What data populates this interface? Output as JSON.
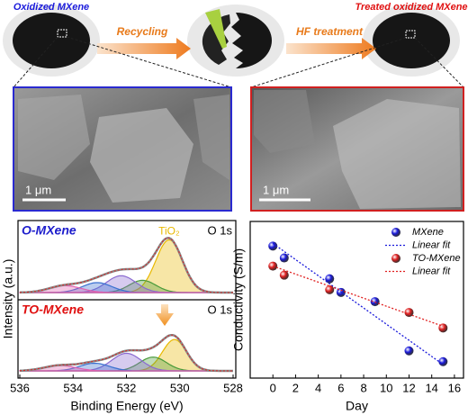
{
  "figure": {
    "top": {
      "left_label": "Oxidized MXene",
      "right_label": "Treated oxidized MXene",
      "arrow1": "Recycling",
      "arrow2": "HF treatment"
    },
    "sem": {
      "left_scale": "1 μm",
      "right_scale": "1 μm"
    }
  },
  "chart_data": [
    {
      "type": "xps",
      "x_label": "Binding Energy (eV)",
      "y_label": "Intensity (a.u.)",
      "xlim": [
        536,
        528
      ],
      "xticks": [
        536,
        534,
        532,
        530,
        528
      ],
      "panels": [
        {
          "title": "O-MXene",
          "title_color": "#1d1dcc",
          "core_level": "O 1s",
          "ylim": [
            0,
            100
          ],
          "peaks": [
            {
              "label": "TiO₂",
              "center": 530.4,
              "height": 69,
              "width": 0.5,
              "color": "#e8b800"
            },
            {
              "center": 531.4,
              "height": 16,
              "width": 0.5,
              "color": "#4a9a3a"
            },
            {
              "center": 532.2,
              "height": 22,
              "width": 0.55,
              "color": "#8a6ad0"
            },
            {
              "center": 533.1,
              "height": 13,
              "width": 0.55,
              "color": "#3a70d0"
            },
            {
              "center": 534.3,
              "height": 9,
              "width": 0.6,
              "color": "#e060b0"
            }
          ]
        },
        {
          "title": "TO-MXene",
          "title_color": "#e01010",
          "core_level": "O 1s",
          "ylim": [
            0,
            100
          ],
          "peaks": [
            {
              "center": 530.2,
              "height": 41,
              "width": 0.45,
              "color": "#e8b800"
            },
            {
              "center": 531.0,
              "height": 18,
              "width": 0.5,
              "color": "#4a9a3a"
            },
            {
              "center": 532.0,
              "height": 23,
              "width": 0.55,
              "color": "#8a6ad0"
            },
            {
              "center": 533.2,
              "height": 10,
              "width": 0.55,
              "color": "#3a70d0"
            },
            {
              "center": 534.5,
              "height": 7,
              "width": 0.6,
              "color": "#e060b0"
            }
          ]
        }
      ]
    },
    {
      "type": "scatter",
      "x_label": "Day",
      "y_label": "Conductivity (S/m)",
      "xlim": [
        -2,
        16.8
      ],
      "xticks": [
        0,
        2,
        4,
        6,
        8,
        10,
        12,
        14,
        16
      ],
      "ylim": [
        0,
        100
      ],
      "series": [
        {
          "name": "MXene",
          "color": "#1a1adb",
          "x": [
            0,
            1,
            5,
            6,
            9,
            12,
            15
          ],
          "values": [
            84.3,
            76.7,
            63.4,
            54.7,
            48.8,
            17.4,
            10.5
          ]
        },
        {
          "name": "Linear fit",
          "color": "#1a1adb",
          "line": true,
          "x": [
            0,
            15
          ],
          "values": [
            86,
            8.7
          ]
        },
        {
          "name": "TO-MXene",
          "color": "#e02020",
          "x": [
            0,
            1,
            5,
            12,
            15
          ],
          "values": [
            71.5,
            65.7,
            56.4,
            41.9,
            32.0
          ]
        },
        {
          "name": "Linear fit",
          "color": "#e02020",
          "line": true,
          "x": [
            0,
            15
          ],
          "values": [
            71.5,
            33.1
          ]
        }
      ]
    }
  ]
}
